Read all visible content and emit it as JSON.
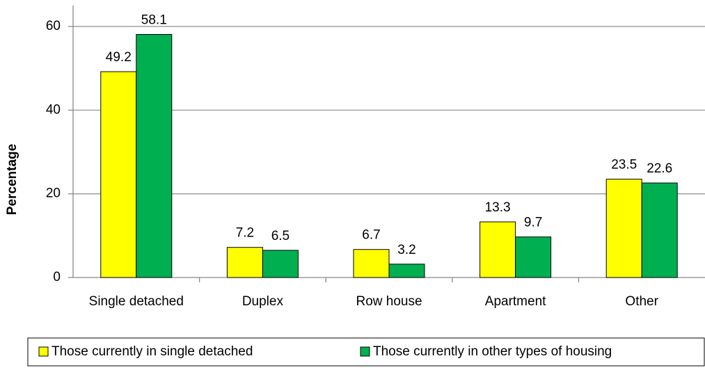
{
  "chart_data": {
    "type": "bar",
    "y_label": "Percentage",
    "categories": [
      "Single detached",
      "Duplex",
      "Row house",
      "Apartment",
      "Other"
    ],
    "series": [
      {
        "name": "Those currently in single detached",
        "color": "#ffff00",
        "values": [
          49.2,
          7.2,
          6.7,
          13.3,
          23.5
        ]
      },
      {
        "name": "Those currently in other types of housing",
        "color": "#00b050",
        "values": [
          58.1,
          6.5,
          3.2,
          9.7,
          22.6
        ]
      }
    ],
    "ylim": [
      0,
      65
    ],
    "yticks": [
      0,
      20,
      40,
      60
    ],
    "grid": true,
    "legend": "bottom"
  }
}
